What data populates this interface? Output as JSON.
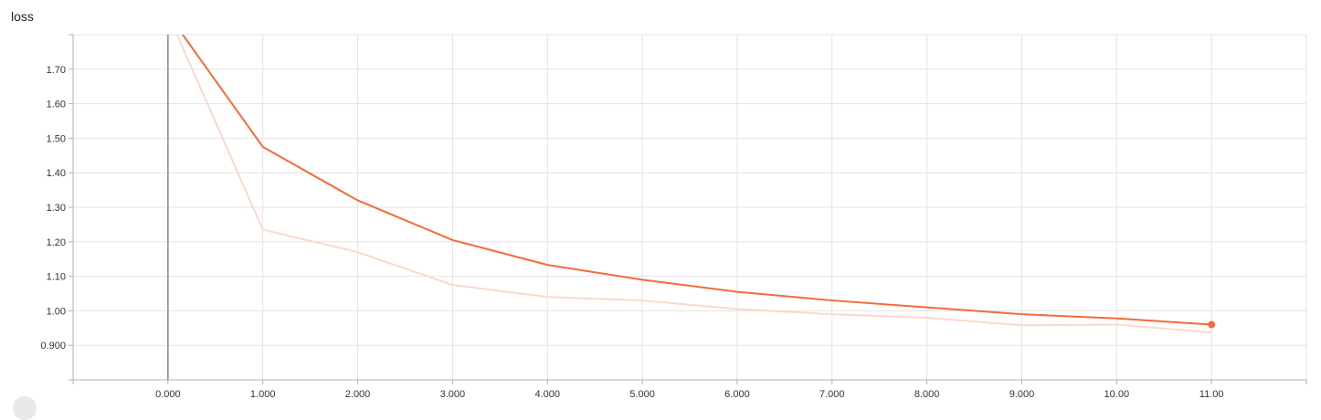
{
  "chart_data": {
    "type": "line",
    "title": "loss",
    "xlabel": "",
    "ylabel": "",
    "x_tick_labels": [
      "0.000",
      "1.000",
      "2.000",
      "3.000",
      "4.000",
      "5.000",
      "6.000",
      "7.000",
      "8.000",
      "9.000",
      "10.00",
      "11.00"
    ],
    "y_tick_labels": [
      "0.900",
      "1.00",
      "1.10",
      "1.20",
      "1.30",
      "1.40",
      "1.50",
      "1.60",
      "1.70"
    ],
    "xlim": [
      -1.0,
      12.0
    ],
    "ylim": [
      0.8,
      1.8
    ],
    "grid": true,
    "series": [
      {
        "role": "smoothed",
        "color": "#f26b3a",
        "x": [
          0,
          1,
          2,
          3,
          4,
          5,
          6,
          7,
          8,
          9,
          10,
          11
        ],
        "y": [
          1.86,
          1.475,
          1.32,
          1.205,
          1.133,
          1.09,
          1.055,
          1.03,
          1.01,
          0.99,
          0.978,
          0.96
        ],
        "end_marker": true
      },
      {
        "role": "raw",
        "color": "#fbd9cc",
        "x": [
          0,
          1,
          2,
          3,
          4,
          5,
          6,
          7,
          8,
          9,
          10,
          11
        ],
        "y": [
          1.86,
          1.235,
          1.17,
          1.075,
          1.04,
          1.03,
          1.005,
          0.99,
          0.98,
          0.958,
          0.96,
          0.937
        ]
      }
    ]
  }
}
